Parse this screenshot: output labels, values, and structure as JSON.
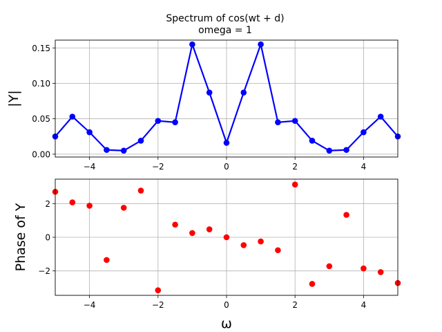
{
  "figure": {
    "title_line1": "Spectrum of cos(wt + d)",
    "title_line2": "omega = 1"
  },
  "chart_data": [
    {
      "type": "line",
      "ylabel": "|Y|",
      "xlim": [
        -5,
        5
      ],
      "ylim": [
        -0.004,
        0.161
      ],
      "xticks": [
        -4,
        -2,
        0,
        2,
        4
      ],
      "xtick_labels": [
        "−4",
        "−2",
        "0",
        "2",
        "4"
      ],
      "yticks": [
        0.0,
        0.05,
        0.1,
        0.15
      ],
      "ytick_labels": [
        "0.00",
        "0.05",
        "0.10",
        "0.15"
      ],
      "grid": true,
      "series": [
        {
          "color": "#0000ff",
          "marker": "circle",
          "x": [
            -5,
            -4.5,
            -4,
            -3.5,
            -3,
            -2.5,
            -2,
            -1.5,
            -1,
            -0.5,
            0,
            0.5,
            1,
            1.5,
            2,
            2.5,
            3,
            3.5,
            4,
            4.5,
            5
          ],
          "y": [
            0.025,
            0.053,
            0.031,
            0.006,
            0.005,
            0.019,
            0.047,
            0.045,
            0.155,
            0.087,
            0.016,
            0.087,
            0.155,
            0.045,
            0.047,
            0.019,
            0.005,
            0.006,
            0.031,
            0.053,
            0.025
          ]
        }
      ]
    },
    {
      "type": "scatter",
      "xlabel": "ω",
      "ylabel": "Phase of Y",
      "xlim": [
        -5,
        5
      ],
      "ylim": [
        -3.45,
        3.45
      ],
      "xticks": [
        -4,
        -2,
        0,
        2,
        4
      ],
      "xtick_labels": [
        "−4",
        "−2",
        "0",
        "2",
        "4"
      ],
      "yticks": [
        -2,
        0,
        2
      ],
      "ytick_labels": [
        "−2",
        "0",
        "2"
      ],
      "grid": true,
      "series": [
        {
          "color": "#ff0000",
          "marker": "circle",
          "x": [
            -5,
            -4.5,
            -4,
            -3.5,
            -3,
            -2.5,
            -2,
            -1.5,
            -1,
            -0.5,
            0,
            0.5,
            1,
            1.5,
            2,
            2.5,
            3,
            3.5,
            4,
            4.5,
            5
          ],
          "y": [
            2.7,
            2.07,
            1.87,
            -1.35,
            1.75,
            2.77,
            -3.15,
            0.75,
            0.25,
            0.47,
            0.0,
            -0.47,
            -0.25,
            -0.77,
            3.13,
            -2.77,
            -1.72,
            1.33,
            -1.85,
            -2.07,
            -2.72
          ]
        }
      ]
    }
  ]
}
